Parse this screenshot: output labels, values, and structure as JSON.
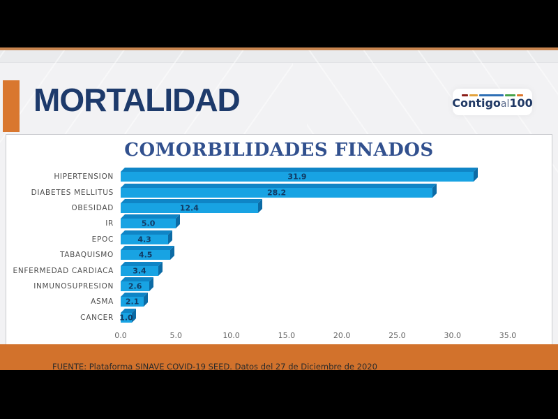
{
  "header": {
    "title": "MORTALIDAD"
  },
  "logo": {
    "word_bold": "Contigo",
    "word_light": "al",
    "word_number": "100",
    "stripe_colors": [
      "#8c1d18",
      "#e3a23c",
      "#2e6fb5",
      "#47a44b",
      "#dd762b"
    ]
  },
  "chart_data": {
    "type": "bar",
    "orientation": "horizontal",
    "title": "COMORBILIDADES FINADOS",
    "categories": [
      "HIPERTENSION",
      "DIABETES MELLITUS",
      "OBESIDAD",
      "IR",
      "EPOC",
      "TABAQUISMO",
      "ENFERMEDAD CARDIACA",
      "INMUNOSUPRESION",
      "ASMA",
      "CANCER"
    ],
    "values": [
      31.9,
      28.2,
      12.4,
      5.0,
      4.3,
      4.5,
      3.4,
      2.6,
      2.1,
      1.0
    ],
    "xlim": [
      0,
      35
    ],
    "x_ticks": [
      "0.0",
      "5.0",
      "10.0",
      "15.0",
      "20.0",
      "25.0",
      "30.0",
      "35.0"
    ],
    "grid": false,
    "legend": "none",
    "bar_color": "#18a3e3",
    "bar_top_color": "#0f85c6",
    "bar_side_color": "#0c6ba5",
    "value_label_color": "#123a63",
    "title_color": "#31508e",
    "category_label_color": "#4d4d4d"
  },
  "footer": {
    "source_text": "FUENTE: Plataforma SINAVE COVID-19 SEED. Datos del 27 de Diciembre de 2020"
  },
  "colors": {
    "accent_orange": "#d9772f",
    "footer_orange": "#d2722c",
    "divider_orange": "#c9854f",
    "title_navy": "#1d3a6b",
    "slide_background": "#f2f2f4",
    "letterbox_black": "#000000"
  }
}
